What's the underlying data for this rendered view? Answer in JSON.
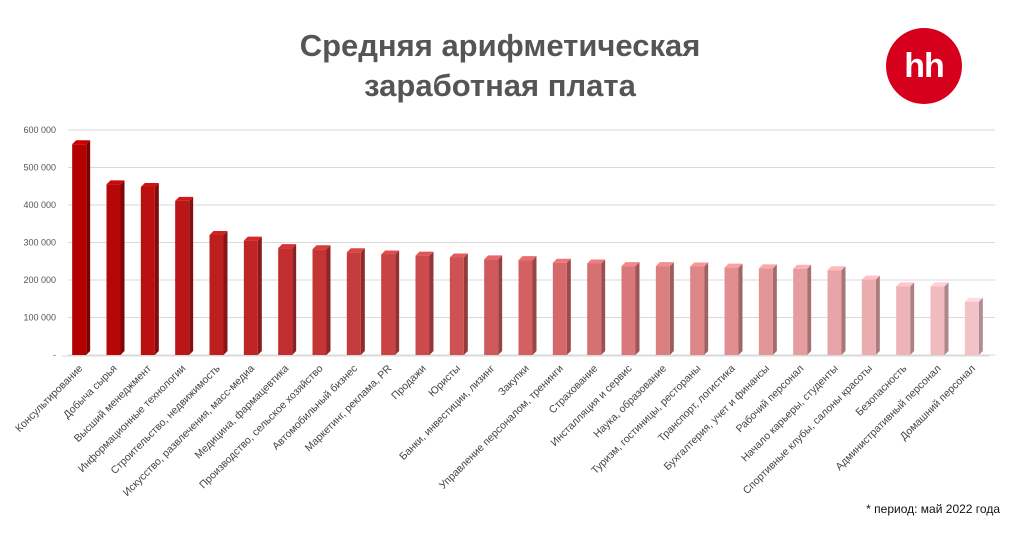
{
  "header": {
    "title_line1": "Средняя арифметическая",
    "title_line2": "заработная плата",
    "logo_text": "hh",
    "logo_color": "#d6001c"
  },
  "footnote": "* период: май 2022 года",
  "chart_data": {
    "type": "bar",
    "title": "Средняя арифметическая заработная плата",
    "categories": [
      "Консультирование",
      "Добыча сырья",
      "Высший менеджмент",
      "Информационные технологии",
      "Строительство, недвижимость",
      "Искусство, развлечения, масс-медиа",
      "Медицина, фармацевтика",
      "Производство, сельское хозяйство",
      "Автомобильный бизнес",
      "Маркетинг, реклама, PR",
      "Продажи",
      "Юристы",
      "Банки, инвестиции, лизинг",
      "Закупки",
      "Управление персоналом, тренинги",
      "Страхование",
      "Инсталляция и сервис",
      "Наука, образование",
      "Туризм, гостиницы, рестораны",
      "Транспорт, логистика",
      "Бухгалтерия, учет и финансы",
      "Рабочий персонал",
      "Начало карьеры, студенты",
      "Спортивные клубы, салоны красоты",
      "Безопасность",
      "Административный персонал",
      "Домашний персонал"
    ],
    "values": [
      562000,
      455000,
      448000,
      411000,
      320000,
      305000,
      285000,
      282000,
      274000,
      268000,
      265000,
      260000,
      255000,
      253000,
      246000,
      244000,
      237000,
      237000,
      236000,
      233000,
      231000,
      230000,
      226000,
      201000,
      183000,
      183000,
      142000
    ],
    "yticks": [
      "-",
      "100 000",
      "200 000",
      "300 000",
      "400 000",
      "500 000",
      "600 000"
    ],
    "ylim": [
      0,
      600000
    ],
    "grid": true,
    "color_start": "#b30000",
    "color_end": "#f2c2c6"
  }
}
